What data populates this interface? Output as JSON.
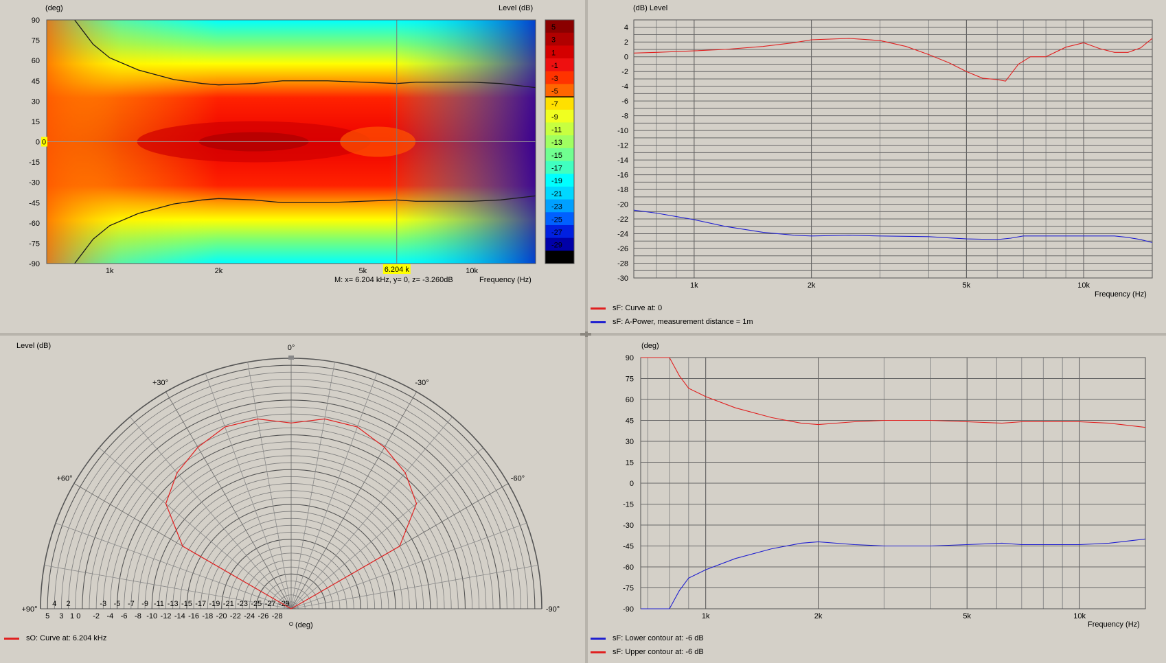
{
  "colors": {
    "red": "#e02020",
    "blue": "#2020d0",
    "grid": "#7d7d7d",
    "bg": "#d4d0c8"
  },
  "heatmap": {
    "deg_label": "(deg)",
    "level_label": "Level  (dB)",
    "freq_label": "Frequency  (Hz)",
    "cursor_x_label": "6.204 k",
    "cursor_y_label": "0",
    "readout": "M:  x= 6.204 kHz,  y= 0, z= -3.260dB",
    "y_ticks": [
      "90",
      "75",
      "60",
      "45",
      "30",
      "15",
      "0",
      "-15",
      "-30",
      "-45",
      "-60",
      "-75",
      "-90"
    ],
    "x_ticks": [
      "1k",
      "2k",
      "5k",
      "10k"
    ],
    "colorbar": [
      {
        "label": "5",
        "color": "#8a0000"
      },
      {
        "label": "3",
        "color": "#b00000"
      },
      {
        "label": "1",
        "color": "#d40000"
      },
      {
        "label": "-1",
        "color": "#ee1010"
      },
      {
        "label": "-3",
        "color": "#ff3300"
      },
      {
        "label": "-5",
        "color": "#ff6600"
      },
      {
        "label": "-7",
        "color": "#ffe000"
      },
      {
        "label": "-9",
        "color": "#f0ff20"
      },
      {
        "label": "-11",
        "color": "#c8ff40"
      },
      {
        "label": "-13",
        "color": "#a0ff60"
      },
      {
        "label": "-15",
        "color": "#70ff90"
      },
      {
        "label": "-17",
        "color": "#40ffc0"
      },
      {
        "label": "-19",
        "color": "#00ffff"
      },
      {
        "label": "-21",
        "color": "#00d8ff"
      },
      {
        "label": "-23",
        "color": "#00a0ff"
      },
      {
        "label": "-25",
        "color": "#0060ff"
      },
      {
        "label": "-27",
        "color": "#0020e0"
      },
      {
        "label": "-29",
        "color": "#0000a8"
      }
    ]
  },
  "freqresp": {
    "y_label": "(dB)  Level",
    "x_label": "Frequency  (Hz)",
    "y_ticks": [
      "4",
      "2",
      "0",
      "-2",
      "-4",
      "-6",
      "-8",
      "-10",
      "-12",
      "-14",
      "-16",
      "-18",
      "-20",
      "-22",
      "-24",
      "-26",
      "-28",
      "-30"
    ],
    "x_ticks": [
      "1k",
      "2k",
      "5k",
      "10k"
    ],
    "legend": [
      {
        "label": "sF: Curve at: 0",
        "color": "#e02020"
      },
      {
        "label": "sF: A-Power, measurement distance = 1m",
        "color": "#2020d0"
      }
    ]
  },
  "polar": {
    "level_label": "Level  (dB)",
    "deg_label": "(deg)",
    "angle_labels": [
      "0°",
      "+30°",
      "-30°",
      "+60°",
      "-60°",
      "+90°",
      "-90°"
    ],
    "radial_labels_upper": [
      "4",
      "2",
      "-3",
      "-5",
      "-7",
      "-9",
      "-11",
      "-13",
      "-15",
      "-17",
      "-19",
      "-21",
      "-23",
      "-25",
      "-27",
      "-29"
    ],
    "radial_labels_lower": [
      "5",
      "3",
      "1 0",
      "-2",
      "-4",
      "-6",
      "-8",
      "-10",
      "-12",
      "-14",
      "-16",
      "-18",
      "-20",
      "-22",
      "-24",
      "-26",
      "-28"
    ],
    "legend": [
      {
        "label": "sO: Curve at: 6.204 kHz",
        "color": "#e02020"
      }
    ]
  },
  "contour": {
    "y_label": "(deg)",
    "x_label": "Frequency  (Hz)",
    "y_ticks": [
      "90",
      "75",
      "60",
      "45",
      "30",
      "15",
      "0",
      "-15",
      "-30",
      "-45",
      "-60",
      "-75",
      "-90"
    ],
    "x_ticks": [
      "1k",
      "2k",
      "5k",
      "10k"
    ],
    "legend": [
      {
        "label": "sF: Lower contour at: -6 dB",
        "color": "#2020d0"
      },
      {
        "label": "sF: Upper contour at: -6 dB",
        "color": "#e02020"
      }
    ]
  },
  "chart_data": [
    {
      "type": "heatmap",
      "title": "",
      "xlabel": "Frequency  (Hz)",
      "ylabel": "(deg)",
      "zlabel": "Level  (dB)",
      "xscale": "log",
      "xlim": [
        670,
        15000
      ],
      "ylim": [
        -90,
        90
      ],
      "zlim": [
        -30,
        6
      ],
      "contour_minus6dB": {
        "x": [
          800,
          900,
          1000,
          1200,
          1500,
          1800,
          2000,
          2500,
          3000,
          4000,
          5000,
          6200,
          7000,
          8000,
          10000,
          12000,
          15000
        ],
        "y": [
          90,
          72,
          62,
          53,
          46,
          43,
          42,
          43,
          45,
          45,
          44,
          43,
          44,
          44,
          44,
          43,
          40
        ]
      },
      "cursor": {
        "x_kHz": 6.204,
        "y": 0,
        "z_dB": -3.26
      }
    },
    {
      "type": "line",
      "title": "",
      "xlabel": "Frequency  (Hz)",
      "ylabel": "(dB)  Level",
      "xscale": "log",
      "xlim": [
        700,
        15000
      ],
      "ylim": [
        -30,
        5
      ],
      "series": [
        {
          "name": "sF: Curve at: 0",
          "x": [
            700,
            800,
            1000,
            1200,
            1500,
            1800,
            2000,
            2500,
            3000,
            3500,
            4000,
            4500,
            5000,
            5500,
            6000,
            6300,
            6800,
            7300,
            8000,
            9000,
            10000,
            11000,
            12000,
            13000,
            14000,
            15000
          ],
          "y": [
            0.5,
            0.6,
            0.8,
            1.0,
            1.4,
            1.9,
            2.3,
            2.5,
            2.2,
            1.4,
            0.3,
            -0.8,
            -2.0,
            -2.9,
            -3.1,
            -3.3,
            -1.0,
            0.0,
            0.0,
            1.3,
            1.9,
            1.1,
            0.6,
            0.6,
            1.2,
            2.5
          ]
        },
        {
          "name": "sF: A-Power, measurement distance = 1m",
          "x": [
            700,
            800,
            1000,
            1200,
            1500,
            1800,
            2000,
            2500,
            3000,
            4000,
            5000,
            6000,
            6500,
            7000,
            8000,
            10000,
            12000,
            13000,
            14000,
            15000
          ],
          "y": [
            -20.8,
            -21.2,
            -22.1,
            -23.0,
            -23.8,
            -24.2,
            -24.3,
            -24.2,
            -24.3,
            -24.4,
            -24.7,
            -24.8,
            -24.6,
            -24.3,
            -24.3,
            -24.3,
            -24.3,
            -24.5,
            -24.8,
            -25.2
          ]
        }
      ]
    },
    {
      "type": "polar",
      "title": "",
      "angle_range_deg": [
        -90,
        90
      ],
      "r_dB_range": [
        -30,
        6
      ],
      "series": [
        {
          "name": "sO: Curve at: 6.204 kHz",
          "angle_deg": [
            -73,
            -60,
            -50,
            -40,
            -30,
            -20,
            -10,
            0,
            10,
            20,
            30,
            40,
            50,
            60,
            73
          ],
          "level_dB": [
            -30,
            -12,
            -6.5,
            -4.5,
            -3.2,
            -2.2,
            -2.3,
            -3.3,
            -2.3,
            -2.2,
            -3.2,
            -4.5,
            -6.5,
            -12,
            -30
          ]
        }
      ]
    },
    {
      "type": "line",
      "title": "",
      "xlabel": "Frequency  (Hz)",
      "ylabel": "(deg)",
      "xscale": "log",
      "xlim": [
        670,
        15000
      ],
      "ylim": [
        -90,
        90
      ],
      "series": [
        {
          "name": "sF: Lower contour at: -6 dB",
          "x": [
            670,
            800,
            850,
            900,
            1000,
            1200,
            1500,
            1800,
            2000,
            2500,
            3000,
            4000,
            5000,
            6200,
            7000,
            8000,
            10000,
            12000,
            15000
          ],
          "y": [
            -90,
            -90,
            -77,
            -68,
            -62,
            -54,
            -47,
            -43,
            -42,
            -44,
            -45,
            -45,
            -44,
            -43,
            -44,
            -44,
            -44,
            -43,
            -40
          ]
        },
        {
          "name": "sF: Upper contour at: -6 dB",
          "x": [
            670,
            800,
            850,
            900,
            1000,
            1200,
            1500,
            1800,
            2000,
            2500,
            3000,
            4000,
            5000,
            6200,
            7000,
            8000,
            10000,
            12000,
            15000
          ],
          "y": [
            90,
            90,
            77,
            68,
            62,
            54,
            47,
            43,
            42,
            44,
            45,
            45,
            44,
            43,
            44,
            44,
            44,
            43,
            40
          ]
        }
      ]
    }
  ]
}
